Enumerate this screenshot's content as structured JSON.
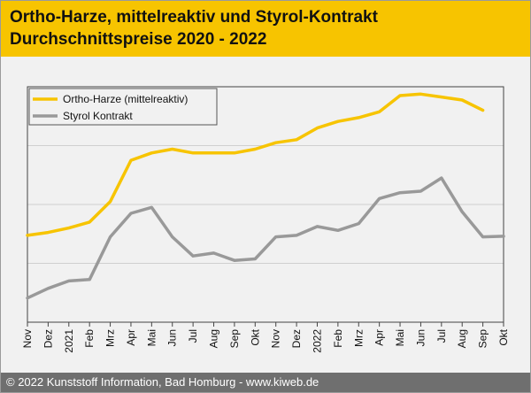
{
  "header": {
    "title_line1": "Ortho-Harze, mittelreaktiv und Styrol-Kontrakt",
    "title_line2": "Durchschnittspreise 2020 - 2022",
    "background_color": "#f7c400"
  },
  "footer": {
    "text": "© 2022 Kunststoff Information, Bad Homburg - www.kiweb.de",
    "background_color": "#6f6f6f"
  },
  "chart_data": {
    "type": "line",
    "title": "Ortho-Harze, mittelreaktiv und Styrol-Kontrakt Durchschnittspreise 2020 - 2022",
    "xlabel": "",
    "ylabel": "",
    "ylim": [
      0,
      8
    ],
    "grid": true,
    "legend_position": "top-left",
    "categories": [
      "Nov",
      "Dez",
      "2021",
      "Feb",
      "Mrz",
      "Apr",
      "Mai",
      "Jun",
      "Jul",
      "Aug",
      "Sep",
      "Okt",
      "Nov",
      "Dez",
      "2022",
      "Feb",
      "Mrz",
      "Apr",
      "Mai",
      "Jun",
      "Jul",
      "Aug",
      "Sep",
      "Okt"
    ],
    "series": [
      {
        "name": "Ortho-Harze (mittelreaktiv)",
        "color": "#f7c400",
        "values": [
          2.95,
          3.05,
          3.2,
          3.4,
          4.1,
          5.5,
          5.75,
          5.88,
          5.75,
          5.75,
          5.75,
          5.88,
          6.1,
          6.2,
          6.6,
          6.82,
          6.95,
          7.15,
          7.7,
          7.75,
          7.65,
          7.55,
          7.2,
          null
        ]
      },
      {
        "name": "Styrol Kontrakt",
        "color": "#999999",
        "values": [
          0.82,
          1.15,
          1.4,
          1.45,
          2.9,
          3.7,
          3.9,
          2.9,
          2.25,
          2.35,
          2.1,
          2.15,
          2.9,
          2.95,
          3.25,
          3.12,
          3.35,
          4.2,
          4.4,
          4.45,
          4.9,
          3.75,
          2.9,
          2.92
        ]
      }
    ]
  }
}
